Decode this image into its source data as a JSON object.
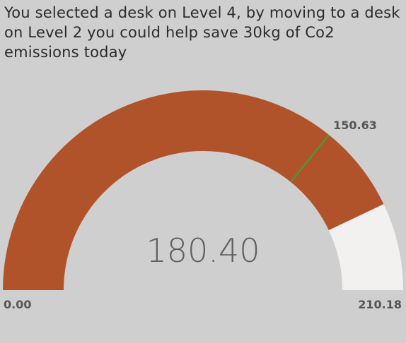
{
  "header": {
    "message": "You selected a desk on Level 4, by moving to a desk on Level 2 you could help save 30kg of Co2 emissions today"
  },
  "chart_data": {
    "type": "gauge",
    "min": 0,
    "max": 210.18,
    "value": 180.4,
    "target": 150.63,
    "value_label": "180.40",
    "min_label": "0.00",
    "max_label": "210.18",
    "target_label": "150.63",
    "colors": {
      "value_fill": "#b0532a",
      "track": "#f2f1f0",
      "target_line": "#3aa33a",
      "background": "#cfcfcf"
    }
  }
}
